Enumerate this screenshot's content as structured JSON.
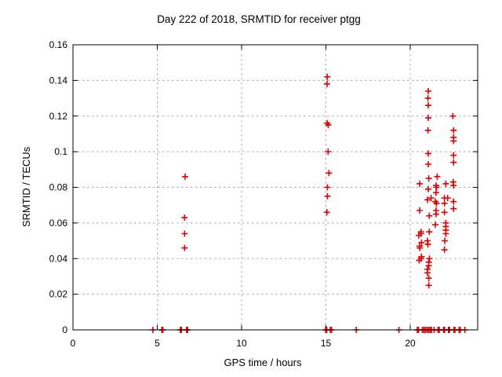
{
  "chart_data": {
    "type": "scatter",
    "title": "Day 222 of 2018, SRMTID for receiver ptgg",
    "xlabel": "GPS time / hours",
    "ylabel": "SRMTID / TECUs",
    "xlim": [
      0,
      24
    ],
    "ylim": [
      0,
      0.16
    ],
    "xticks": {
      "values": [
        0,
        5,
        10,
        15,
        20
      ],
      "labels": [
        "0",
        "5",
        "10",
        "15",
        "20"
      ]
    },
    "yticks": {
      "values": [
        0,
        0.02,
        0.04,
        0.06,
        0.08,
        0.1,
        0.12,
        0.14,
        0.16
      ],
      "labels": [
        "0",
        "0.02",
        "0.04",
        "0.06",
        "0.08",
        "0.1",
        "0.12",
        "0.14",
        "0.16"
      ]
    },
    "grid": true,
    "legend": "none",
    "marker": "plus",
    "marker_color": "#dd0000",
    "grid_color": "#a8a8a8",
    "axis_color": "#000000",
    "background_color": "#ffffff",
    "series": [
      {
        "name": "SRMTID",
        "points": [
          [
            4.74,
            0
          ],
          [
            5.27,
            0
          ],
          [
            5.33,
            0
          ],
          [
            6.37,
            0
          ],
          [
            6.43,
            0
          ],
          [
            6.74,
            0
          ],
          [
            6.8,
            0
          ],
          [
            14.98,
            0
          ],
          [
            15.05,
            0
          ],
          [
            15.26,
            0
          ],
          [
            15.33,
            0
          ],
          [
            16.8,
            0
          ],
          [
            19.33,
            0
          ],
          [
            20.42,
            0
          ],
          [
            20.49,
            0
          ],
          [
            20.72,
            0
          ],
          [
            20.81,
            0
          ],
          [
            20.9,
            0
          ],
          [
            21.0,
            0
          ],
          [
            21.09,
            0
          ],
          [
            21.18,
            0
          ],
          [
            21.26,
            0
          ],
          [
            21.42,
            0
          ],
          [
            21.65,
            0
          ],
          [
            21.72,
            0
          ],
          [
            21.98,
            0
          ],
          [
            22.04,
            0
          ],
          [
            22.27,
            0
          ],
          [
            22.33,
            0
          ],
          [
            22.59,
            0
          ],
          [
            22.65,
            0
          ],
          [
            22.9,
            0
          ],
          [
            22.96,
            0
          ],
          [
            23.24,
            0
          ],
          [
            6.65,
            0.086
          ],
          [
            6.62,
            0.063
          ],
          [
            6.62,
            0.054
          ],
          [
            6.62,
            0.046
          ],
          [
            15.08,
            0.142
          ],
          [
            15.07,
            0.138
          ],
          [
            15.08,
            0.116
          ],
          [
            15.14,
            0.115
          ],
          [
            15.13,
            0.1
          ],
          [
            15.18,
            0.088
          ],
          [
            15.09,
            0.08
          ],
          [
            15.09,
            0.075
          ],
          [
            15.06,
            0.066
          ],
          [
            21.07,
            0.134
          ],
          [
            21.05,
            0.13
          ],
          [
            21.07,
            0.126
          ],
          [
            21.07,
            0.119
          ],
          [
            22.53,
            0.12
          ],
          [
            21.05,
            0.112
          ],
          [
            22.57,
            0.112
          ],
          [
            22.57,
            0.108
          ],
          [
            22.57,
            0.106
          ],
          [
            21.07,
            0.099
          ],
          [
            22.57,
            0.098
          ],
          [
            22.57,
            0.094
          ],
          [
            21.07,
            0.093
          ],
          [
            21.1,
            0.085
          ],
          [
            21.6,
            0.086
          ],
          [
            20.56,
            0.082
          ],
          [
            21.53,
            0.081
          ],
          [
            21.56,
            0.08
          ],
          [
            22.11,
            0.082
          ],
          [
            22.55,
            0.083
          ],
          [
            22.57,
            0.081
          ],
          [
            21.07,
            0.079
          ],
          [
            21.53,
            0.077
          ],
          [
            21.02,
            0.073
          ],
          [
            21.49,
            0.072
          ],
          [
            21.24,
            0.074
          ],
          [
            22.03,
            0.074
          ],
          [
            22.22,
            0.074
          ],
          [
            22.57,
            0.072
          ],
          [
            20.56,
            0.067
          ],
          [
            21.53,
            0.067
          ],
          [
            22.03,
            0.066
          ],
          [
            21.56,
            0.071
          ],
          [
            22.03,
            0.071
          ],
          [
            21.53,
            0.065
          ],
          [
            22.57,
            0.068
          ],
          [
            21.13,
            0.064
          ],
          [
            21.49,
            0.059
          ],
          [
            22.11,
            0.06
          ],
          [
            22.11,
            0.058
          ],
          [
            22.11,
            0.056
          ],
          [
            22.11,
            0.054
          ],
          [
            20.64,
            0.055
          ],
          [
            20.64,
            0.054
          ],
          [
            20.51,
            0.053
          ],
          [
            21.13,
            0.055
          ],
          [
            20.67,
            0.049
          ],
          [
            21.02,
            0.05
          ],
          [
            21.05,
            0.048
          ],
          [
            20.56,
            0.047
          ],
          [
            20.57,
            0.046
          ],
          [
            22.05,
            0.05
          ],
          [
            22.03,
            0.045
          ],
          [
            20.67,
            0.041
          ],
          [
            20.65,
            0.04
          ],
          [
            20.53,
            0.039
          ],
          [
            21.14,
            0.04
          ],
          [
            21.1,
            0.038
          ],
          [
            21.1,
            0.036
          ],
          [
            21.02,
            0.034
          ],
          [
            21.02,
            0.032
          ],
          [
            21.1,
            0.029
          ],
          [
            21.1,
            0.025
          ]
        ]
      }
    ]
  }
}
